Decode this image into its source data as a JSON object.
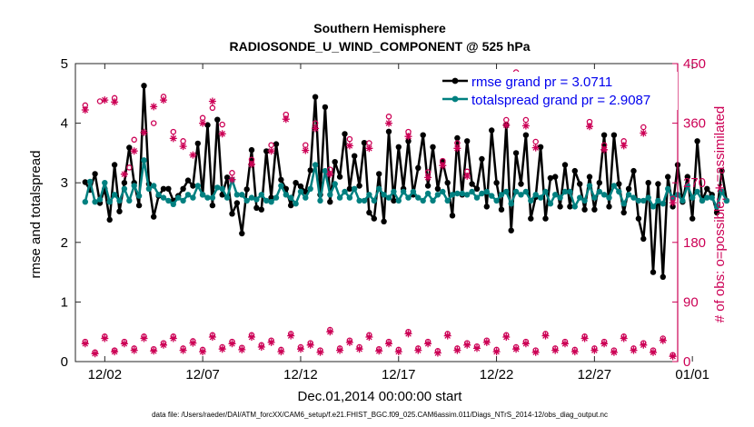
{
  "chart_data": {
    "type": "line",
    "title": "Southern Hemisphere",
    "subtitle": "RADIOSONDE_U_WIND_COMPONENT @ 525 hPa",
    "xlabel": "Dec.01,2014 00:00:00 start",
    "ylabel": "rmse and totalspread",
    "y2label": "# of obs: o=possible; ∗=assimilated",
    "footnote": "data file: /Users/raeder/DAI/ATM_forcXX/CAM6_setup/f.e21.FHIST_BGC.f09_025.CAM6assim.011/Diags_NTrS_2014-12/obs_diag_output.nc",
    "xlim": [
      0.5,
      31.25
    ],
    "ylim": [
      0,
      5
    ],
    "y2lim": [
      0,
      450
    ],
    "xticks": [
      {
        "day": 2,
        "label": "12/02"
      },
      {
        "day": 7,
        "label": "12/07"
      },
      {
        "day": 12,
        "label": "12/12"
      },
      {
        "day": 17,
        "label": "12/17"
      },
      {
        "day": 22,
        "label": "12/22"
      },
      {
        "day": 27,
        "label": "12/27"
      },
      {
        "day": 32,
        "label": "01/01"
      }
    ],
    "yticks": [
      0,
      1,
      2,
      3,
      4,
      5
    ],
    "y2ticks": [
      0,
      90,
      180,
      270,
      360,
      450
    ],
    "ytick_labels": [
      "0",
      "1",
      "2",
      "3",
      "4",
      "5"
    ],
    "y2tick_labels": [
      "0",
      "90",
      "180",
      "270",
      "360",
      "450"
    ],
    "legend_position": "top-right",
    "legend": [
      {
        "label": "rmse grand pr = 3.0711",
        "color": "#000000"
      },
      {
        "label": "totalspread grand pr = 2.9087",
        "color": "#008080"
      }
    ],
    "series": [
      {
        "name": "rmse",
        "axis": "left",
        "color": "#000000",
        "marker": "dot",
        "x0": 1.0,
        "dx": 0.25,
        "values": [
          3.01,
          2.88,
          3.15,
          2.66,
          2.9,
          2.38,
          3.3,
          2.52,
          3.0,
          3.59,
          3.0,
          2.62,
          4.63,
          2.98,
          2.43,
          2.78,
          2.9,
          2.9,
          2.7,
          2.78,
          2.9,
          3.04,
          2.95,
          3.66,
          2.8,
          3.97,
          2.62,
          4.06,
          2.8,
          3.09,
          2.48,
          2.66,
          2.15,
          2.89,
          3.55,
          2.58,
          2.55,
          3.53,
          2.75,
          3.65,
          3.05,
          2.9,
          2.62,
          3.0,
          2.94,
          2.85,
          3.21,
          4.44,
          2.8,
          4.27,
          2.68,
          3.35,
          3.1,
          3.82,
          2.9,
          3.45,
          2.95,
          3.67,
          2.5,
          2.4,
          3.15,
          2.35,
          3.86,
          2.7,
          3.6,
          2.9,
          3.7,
          2.8,
          3.25,
          3.8,
          2.95,
          3.6,
          2.9,
          3.35,
          3.0,
          2.45,
          3.75,
          2.8,
          3.7,
          2.98,
          2.9,
          3.4,
          2.6,
          3.88,
          3.0,
          2.55,
          3.97,
          2.2,
          3.5,
          2.98,
          3.8,
          2.4,
          2.76,
          3.6,
          2.4,
          3.08,
          3.1,
          2.6,
          3.3,
          2.6,
          3.2,
          2.98,
          2.55,
          3.1,
          2.55,
          3.0,
          3.8,
          2.6,
          3.8,
          2.98,
          2.5,
          2.9,
          3.2,
          2.4,
          2.06,
          3.0,
          1.5,
          2.98,
          1.42,
          3.1,
          2.6,
          3.3,
          2.68,
          3.1,
          2.4,
          3.7,
          2.7,
          2.9,
          2.8,
          2.5,
          3.2,
          2.7
        ]
      },
      {
        "name": "totalspread",
        "axis": "left",
        "color": "#008080",
        "marker": "dot",
        "x0": 1.0,
        "dx": 0.25,
        "values": [
          2.68,
          3.02,
          2.68,
          2.72,
          3.0,
          2.68,
          2.8,
          2.7,
          2.9,
          2.7,
          2.95,
          2.78,
          3.38,
          2.9,
          2.95,
          2.8,
          2.75,
          2.7,
          2.64,
          2.75,
          2.7,
          2.8,
          2.75,
          2.95,
          2.8,
          2.75,
          2.75,
          2.92,
          2.9,
          2.75,
          3.05,
          2.8,
          2.8,
          2.7,
          2.75,
          2.72,
          2.8,
          2.7,
          2.68,
          2.75,
          2.95,
          2.8,
          2.75,
          2.65,
          2.85,
          2.75,
          2.9,
          3.3,
          2.7,
          3.2,
          2.8,
          2.98,
          2.75,
          2.85,
          2.75,
          2.9,
          2.7,
          2.7,
          2.8,
          2.7,
          2.9,
          2.8,
          2.75,
          2.85,
          2.7,
          2.85,
          2.75,
          2.85,
          2.75,
          2.7,
          2.82,
          2.7,
          2.8,
          2.85,
          2.7,
          2.8,
          2.82,
          2.82,
          2.8,
          2.85,
          2.75,
          2.82,
          2.85,
          2.78,
          2.7,
          2.8,
          2.85,
          2.65,
          2.85,
          2.8,
          2.85,
          2.7,
          2.8,
          2.75,
          2.85,
          2.65,
          2.8,
          2.75,
          2.85,
          2.85,
          2.6,
          2.75,
          2.7,
          2.95,
          2.75,
          2.85,
          2.8,
          2.75,
          2.95,
          2.85,
          2.65,
          2.8,
          2.75,
          2.7,
          2.7,
          2.75,
          2.6,
          2.7,
          2.65,
          2.9,
          2.75,
          2.8,
          2.7,
          2.95,
          2.75,
          2.85,
          2.7,
          2.75,
          2.75,
          2.6,
          2.85,
          2.7
        ]
      },
      {
        "name": "possible",
        "axis": "right",
        "color": "#cc0055",
        "marker": "circle",
        "points": [
          [
            1.0,
            387
          ],
          [
            1.75,
            393
          ],
          [
            2.5,
            398
          ],
          [
            3.25,
            293
          ],
          [
            3.5,
            335
          ],
          [
            4.5,
            360
          ],
          [
            5.0,
            400
          ],
          [
            5.5,
            347
          ],
          [
            6.0,
            333
          ],
          [
            7.0,
            368
          ],
          [
            7.5,
            383
          ],
          [
            8.0,
            358
          ],
          [
            8.5,
            285
          ],
          [
            9.5,
            305
          ],
          [
            10.5,
            327
          ],
          [
            11.25,
            373
          ],
          [
            12.25,
            327
          ],
          [
            12.75,
            360
          ],
          [
            13.5,
            290
          ],
          [
            14.5,
            336
          ],
          [
            15.5,
            330
          ],
          [
            16.5,
            370
          ],
          [
            17.5,
            347
          ],
          [
            18.5,
            286
          ],
          [
            19.25,
            303
          ],
          [
            20.0,
            330
          ],
          [
            20.5,
            287
          ],
          [
            21.5,
            400
          ],
          [
            22.5,
            365
          ],
          [
            23.0,
            437
          ],
          [
            23.5,
            365
          ],
          [
            24.0,
            332
          ],
          [
            25.5,
            411
          ],
          [
            26.75,
            362
          ],
          [
            27.5,
            327
          ],
          [
            28.5,
            333
          ],
          [
            29.5,
            354
          ],
          [
            31.0,
            246
          ]
        ]
      },
      {
        "name": "assimilated",
        "axis": "right",
        "color": "#cc0055",
        "marker": "star",
        "points": [
          [
            1.0,
            380
          ],
          [
            2.0,
            395
          ],
          [
            2.5,
            392
          ],
          [
            3.0,
            283
          ],
          [
            3.5,
            318
          ],
          [
            4.0,
            346
          ],
          [
            4.5,
            385
          ],
          [
            5.0,
            395
          ],
          [
            5.5,
            337
          ],
          [
            6.0,
            325
          ],
          [
            6.5,
            312
          ],
          [
            7.0,
            360
          ],
          [
            7.5,
            393
          ],
          [
            8.0,
            344
          ],
          [
            8.5,
            275
          ],
          [
            9.5,
            298
          ],
          [
            10.5,
            318
          ],
          [
            11.25,
            366
          ],
          [
            12.25,
            319
          ],
          [
            12.75,
            352
          ],
          [
            13.5,
            283
          ],
          [
            14.5,
            326
          ],
          [
            15.5,
            322
          ],
          [
            16.5,
            360
          ],
          [
            17.5,
            340
          ],
          [
            18.5,
            278
          ],
          [
            19.25,
            296
          ],
          [
            20.0,
            322
          ],
          [
            20.5,
            280
          ],
          [
            21.5,
            393
          ],
          [
            22.5,
            357
          ],
          [
            23.0,
            427
          ],
          [
            23.5,
            356
          ],
          [
            24.0,
            323
          ],
          [
            25.5,
            403
          ],
          [
            26.75,
            355
          ],
          [
            27.5,
            320
          ],
          [
            28.5,
            326
          ],
          [
            29.5,
            345
          ],
          [
            31.0,
            240
          ]
        ]
      },
      {
        "name": "possible (low)",
        "axis": "right",
        "color": "#cc0055",
        "marker": "circle",
        "x0": 1.0,
        "dx": 0.5,
        "values": [
          30,
          14,
          38,
          17,
          30,
          20,
          38,
          19,
          28,
          38,
          20,
          31,
          18,
          40,
          22,
          30,
          21,
          40,
          25,
          32,
          18,
          42,
          22,
          28,
          17,
          48,
          20,
          32,
          22,
          40,
          19,
          30,
          18,
          45,
          20,
          30,
          16,
          42,
          20,
          28,
          23,
          32,
          18,
          40,
          22,
          30,
          17,
          42,
          20,
          30,
          18,
          38,
          20,
          30,
          17,
          38,
          20,
          28,
          17,
          35,
          10
        ]
      },
      {
        "name": "assimilated (low)",
        "axis": "right",
        "color": "#cc0055",
        "marker": "star",
        "x0": 1.0,
        "dx": 0.5,
        "values": [
          27,
          12,
          35,
          15,
          27,
          17,
          35,
          16,
          25,
          35,
          17,
          28,
          15,
          37,
          19,
          27,
          18,
          37,
          22,
          29,
          15,
          39,
          19,
          25,
          14,
          45,
          17,
          29,
          19,
          37,
          16,
          27,
          15,
          42,
          17,
          27,
          13,
          39,
          17,
          25,
          20,
          29,
          15,
          37,
          19,
          27,
          14,
          39,
          17,
          27,
          15,
          35,
          17,
          27,
          14,
          35,
          17,
          25,
          14,
          32,
          8
        ]
      }
    ]
  }
}
